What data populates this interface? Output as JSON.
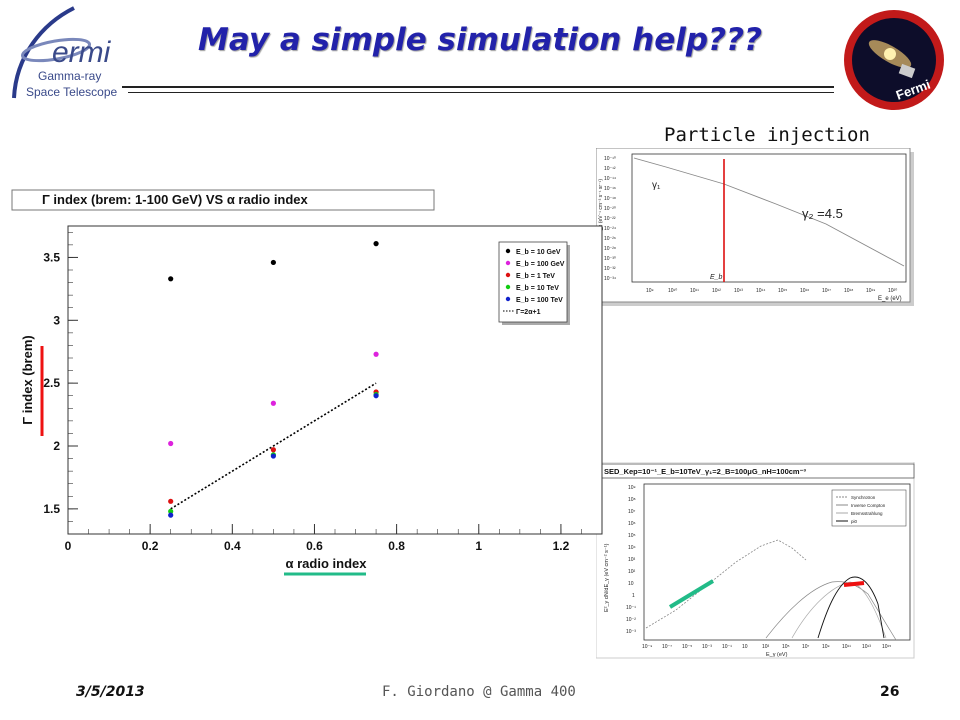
{
  "slide": {
    "title": "May a simple simulation help???",
    "footer_date": "3/5/2013",
    "footer_center": "F. Giordano @ Gamma 400",
    "footer_page": "26",
    "title_color": "#2222aa"
  },
  "logo": {
    "text_main": "ermi",
    "text_line1": "Gamma-ray",
    "text_line2": "Space Telescope",
    "patch_label": "Fermi"
  },
  "injection_panel": {
    "caption": "Particle injection",
    "gamma1_label": "γ₁",
    "gamma2_label": "γ₂ =4.5",
    "eb_label": "E_b",
    "y_axis_label": "dN/dE_e (eV⁻¹ cm⁻³ s⁻¹ sr⁻¹)",
    "x_axis_label": "E_e (eV)",
    "x_ticks": [
      "10⁹",
      "10¹⁰",
      "10¹¹",
      "10¹²",
      "10¹³",
      "10¹⁴",
      "10¹⁵",
      "10¹⁶",
      "10¹⁷",
      "10¹⁸",
      "10¹⁹",
      "10²⁰"
    ],
    "y_ticks": [
      "10⁻¹⁰",
      "10⁻¹²",
      "10⁻¹⁴",
      "10⁻¹⁶",
      "10⁻¹⁸",
      "10⁻²⁰",
      "10⁻²²",
      "10⁻²⁴",
      "10⁻²⁶",
      "10⁻²⁸",
      "10⁻³⁰",
      "10⁻³²",
      "10⁻³⁴"
    ]
  },
  "sed_panel": {
    "title": "SED_Kep=10⁻¹_E_b=10TeV_γ₁=2_B=100μG_nH=100cm⁻³",
    "legend": [
      "Synchrotron",
      "Inverse Compton",
      "Bremsstrahlung",
      "pi0"
    ],
    "y_axis_label": "E²_γ dN/dE_γ (eV cm⁻² s⁻¹)",
    "x_axis_label": "E_γ (eV)",
    "x_ticks": [
      "10⁻⁹",
      "10⁻⁷",
      "10⁻⁵",
      "10⁻³",
      "10⁻¹",
      "10",
      "10³",
      "10⁵",
      "10⁷",
      "10⁹",
      "10¹¹",
      "10¹³",
      "10¹⁵"
    ],
    "y_ticks": [
      "10⁹",
      "10⁸",
      "10⁷",
      "10⁶",
      "10⁵",
      "10⁴",
      "10³",
      "10²",
      "10",
      "1",
      "10⁻¹",
      "10⁻²",
      "10⁻³"
    ]
  },
  "chart_data": {
    "type": "scatter",
    "title": "Γ index (brem: 1-100 GeV) VS α radio index",
    "xlabel": "α radio index",
    "ylabel": "Γ index (brem)",
    "xlim": [
      0,
      1.3
    ],
    "ylim": [
      1.3,
      3.75
    ],
    "x_ticks": [
      "0",
      "0.2",
      "0.4",
      "0.6",
      "0.8",
      "1",
      "1.2"
    ],
    "y_ticks": [
      "1.5",
      "2",
      "2.5",
      "3",
      "3.5"
    ],
    "grid": false,
    "legend_position": "top-right",
    "series": [
      {
        "name": "E_b = 10 GeV",
        "color": "#000000",
        "points": [
          [
            0.25,
            3.33
          ],
          [
            0.5,
            3.46
          ],
          [
            0.75,
            3.61
          ]
        ]
      },
      {
        "name": "E_b = 100 GeV",
        "color": "#dd22dd",
        "points": [
          [
            0.25,
            2.02
          ],
          [
            0.5,
            2.34
          ],
          [
            0.75,
            2.73
          ]
        ]
      },
      {
        "name": "E_b = 1 TeV",
        "color": "#dd1111",
        "points": [
          [
            0.25,
            1.56
          ],
          [
            0.5,
            1.97
          ],
          [
            0.75,
            2.43
          ]
        ]
      },
      {
        "name": "E_b = 10 TeV",
        "color": "#11cc11",
        "points": [
          [
            0.25,
            1.48
          ],
          [
            0.5,
            1.93
          ],
          [
            0.75,
            2.41
          ]
        ]
      },
      {
        "name": "E_b = 100 TeV",
        "color": "#1122cc",
        "points": [
          [
            0.25,
            1.45
          ],
          [
            0.5,
            1.92
          ],
          [
            0.75,
            2.4
          ]
        ]
      }
    ],
    "line": {
      "name": "Γ=2α+1",
      "style": "dotted",
      "color": "#000000",
      "points": [
        [
          0.25,
          1.5
        ],
        [
          0.75,
          2.5
        ]
      ]
    }
  }
}
